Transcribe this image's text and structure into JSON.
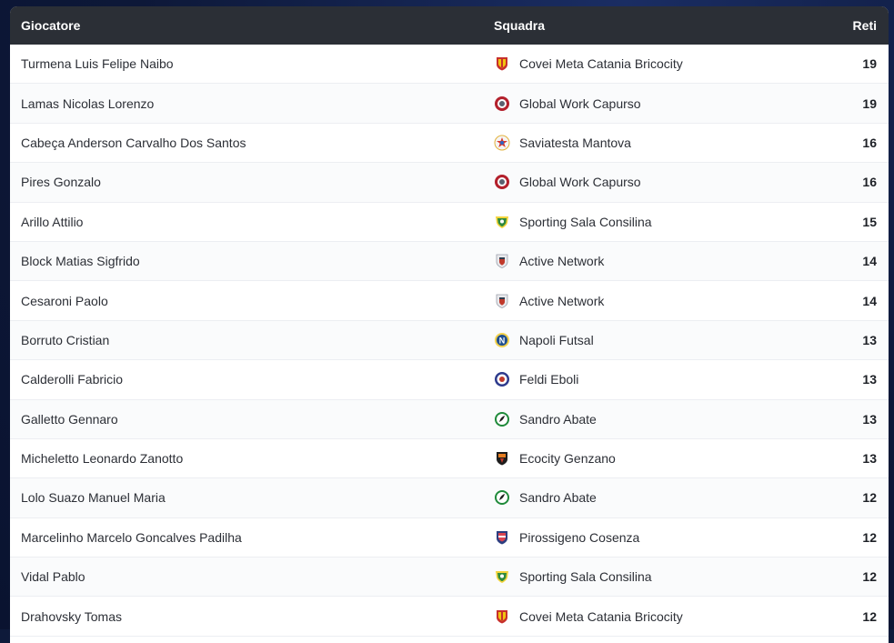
{
  "table": {
    "headers": {
      "player": "Giocatore",
      "team": "Squadra",
      "goals": "Reti"
    },
    "rows": [
      {
        "player": "Turmena Luis Felipe Naibo",
        "team": "Covei Meta Catania Bricocity",
        "goals": "19",
        "crest": "catania-crest-icon"
      },
      {
        "player": "Lamas Nicolas Lorenzo",
        "team": "Global Work Capurso",
        "goals": "19",
        "crest": "capurso-crest-icon"
      },
      {
        "player": "Cabeça Anderson Carvalho Dos Santos",
        "team": "Saviatesta Mantova",
        "goals": "16",
        "crest": "mantova-crest-icon"
      },
      {
        "player": "Pires Gonzalo",
        "team": "Global Work Capurso",
        "goals": "16",
        "crest": "capurso-crest-icon"
      },
      {
        "player": "Arillo Attilio",
        "team": "Sporting Sala Consilina",
        "goals": "15",
        "crest": "sala-consilina-crest-icon"
      },
      {
        "player": "Block Matias Sigfrido",
        "team": "Active Network",
        "goals": "14",
        "crest": "active-network-crest-icon"
      },
      {
        "player": "Cesaroni Paolo",
        "team": "Active Network",
        "goals": "14",
        "crest": "active-network-crest-icon"
      },
      {
        "player": "Borruto Cristian",
        "team": "Napoli Futsal",
        "goals": "13",
        "crest": "napoli-crest-icon"
      },
      {
        "player": "Calderolli Fabricio",
        "team": "Feldi Eboli",
        "goals": "13",
        "crest": "eboli-crest-icon"
      },
      {
        "player": "Galletto Gennaro",
        "team": "Sandro Abate",
        "goals": "13",
        "crest": "sandro-abate-crest-icon"
      },
      {
        "player": "Micheletto Leonardo Zanotto",
        "team": "Ecocity Genzano",
        "goals": "13",
        "crest": "genzano-crest-icon"
      },
      {
        "player": "Lolo Suazo Manuel Maria",
        "team": "Sandro Abate",
        "goals": "12",
        "crest": "sandro-abate-crest-icon"
      },
      {
        "player": "Marcelinho Marcelo Goncalves Padilha",
        "team": "Pirossigeno Cosenza",
        "goals": "12",
        "crest": "cosenza-crest-icon"
      },
      {
        "player": "Vidal Pablo",
        "team": "Sporting Sala Consilina",
        "goals": "12",
        "crest": "sala-consilina-crest-icon"
      },
      {
        "player": "Drahovsky Tomas",
        "team": "Covei Meta Catania Bricocity",
        "goals": "12",
        "crest": "catania-crest-icon"
      }
    ]
  },
  "colors": {
    "header_bg": "#2b2f36",
    "page_bg": "#0e1a3a"
  }
}
